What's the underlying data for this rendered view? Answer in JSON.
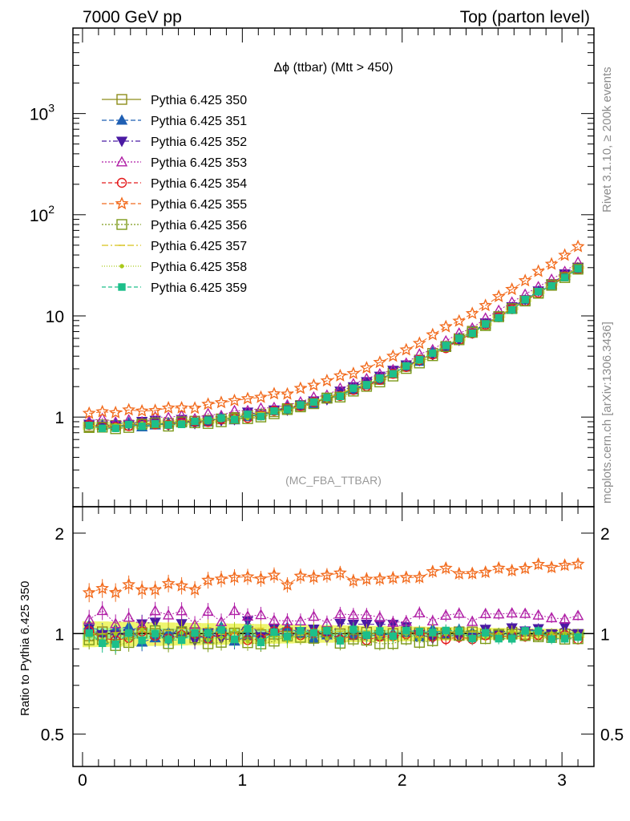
{
  "header": {
    "left": "7000 GeV pp",
    "right": "Top (parton level)"
  },
  "side_labels": {
    "rivet": "Rivet 3.1.10, ≥ 200k events",
    "mcplots": "mcplots.cern.ch [arXiv:1306.3436]"
  },
  "chart_data": {
    "type": "line",
    "title": "Δϕ (ttbar) (Mtt > 450)",
    "analysis_label": "(MC_FBA_TTBAR)",
    "xlim": [
      -0.06,
      3.2
    ],
    "main_ylim": [
      0.13,
      7000
    ],
    "main_yscale": "log",
    "main_yticks": [
      {
        "v": 1,
        "label": "1"
      },
      {
        "v": 10,
        "label": "10"
      },
      {
        "v": 100,
        "label": "10",
        "exp": "2"
      },
      {
        "v": 1000,
        "label": "10",
        "exp": "3"
      }
    ],
    "ratio_ylabel": "Ratio to Pythia 6.425 350",
    "ratio_ylim": [
      0.4,
      2.4
    ],
    "ratio_yscale": "log",
    "ratio_yticks": [
      {
        "v": 0.5,
        "label": "0.5"
      },
      {
        "v": 1,
        "label": "1"
      },
      {
        "v": 2,
        "label": "2"
      }
    ],
    "xticks": [
      {
        "v": 0,
        "label": "0"
      },
      {
        "v": 1,
        "label": "1"
      },
      {
        "v": 2,
        "label": "2"
      },
      {
        "v": 3,
        "label": "3"
      }
    ],
    "nbins": 38,
    "xmin": 0,
    "xmax": 3.14159,
    "reference_curve": {
      "a": 0.8,
      "b": 0.02,
      "c": 2.35
    },
    "series": [
      {
        "name": "Pythia 6.425 350",
        "color": "#8d8d1a",
        "marker": "square-open",
        "dash": "",
        "scale": 1.0,
        "jitter": 0.04
      },
      {
        "name": "Pythia 6.425 351",
        "color": "#1f5fb3",
        "marker": "triangle-up",
        "dash": "6,3",
        "scale": 1.0,
        "jitter": 0.07
      },
      {
        "name": "Pythia 6.425 352",
        "color": "#4b1aa3",
        "marker": "triangle-down",
        "dash": "6,3,2,3",
        "scale": 1.02,
        "jitter": 0.09
      },
      {
        "name": "Pythia 6.425 353",
        "color": "#b01fa6",
        "marker": "triangle-open",
        "dash": "2,2",
        "scale": 1.12,
        "jitter": 0.06
      },
      {
        "name": "Pythia 6.425 354",
        "color": "#e41a1c",
        "marker": "circle-open",
        "dash": "5,3",
        "scale": 0.98,
        "jitter": 0.05
      },
      {
        "name": "Pythia 6.425 355",
        "color": "#f26b1d",
        "marker": "star-open",
        "dash": "6,3",
        "scale": 1.5,
        "jitter": 0.05
      },
      {
        "name": "Pythia 6.425 356",
        "color": "#7d9a1a",
        "marker": "square-open",
        "dash": "2,2",
        "scale": 0.97,
        "jitter": 0.06
      },
      {
        "name": "Pythia 6.425 357",
        "color": "#d6c21a",
        "marker": "dash",
        "dash": "8,3,2,3",
        "scale": 1.0,
        "jitter": 0.05
      },
      {
        "name": "Pythia 6.425 358",
        "color": "#a9c91a",
        "marker": "dot",
        "dash": "1,2",
        "scale": 0.99,
        "jitter": 0.05
      },
      {
        "name": "Pythia 6.425 359",
        "color": "#1dbf8a",
        "marker": "square",
        "dash": "5,3",
        "scale": 0.99,
        "jitter": 0.07
      }
    ]
  }
}
